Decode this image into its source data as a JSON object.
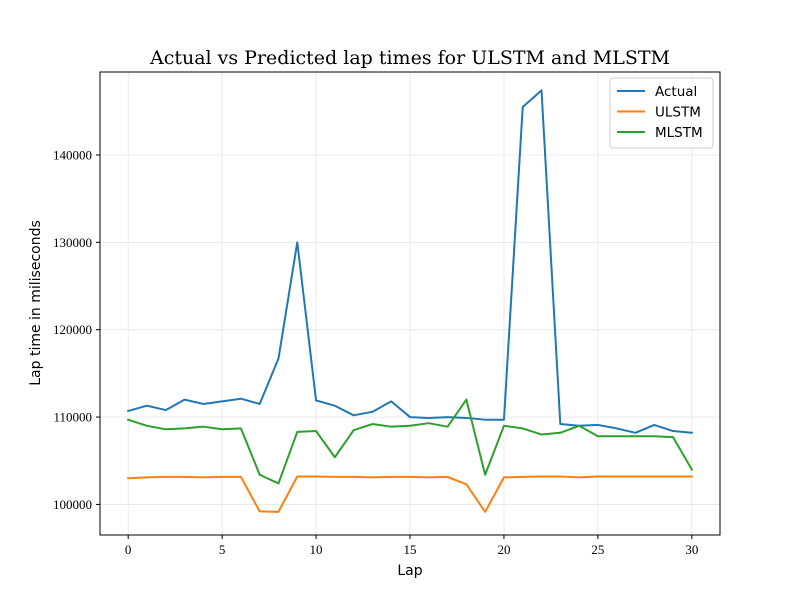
{
  "chart_data": {
    "type": "line",
    "title": "Actual vs Predicted lap times for ULSTM and MLSTM",
    "xlabel": "Lap",
    "ylabel": "Lap time in miliseconds",
    "xlim": [
      -1.5,
      31.5
    ],
    "ylim": [
      96500,
      149500
    ],
    "xticks": [
      0,
      5,
      10,
      15,
      20,
      25,
      30
    ],
    "yticks": [
      100000,
      110000,
      120000,
      130000,
      140000
    ],
    "grid": true,
    "legend_position": "top-right",
    "x": [
      0,
      1,
      2,
      3,
      4,
      5,
      6,
      7,
      8,
      9,
      10,
      11,
      12,
      13,
      14,
      15,
      16,
      17,
      18,
      19,
      20,
      21,
      22,
      23,
      24,
      25,
      26,
      27,
      28,
      29,
      30
    ],
    "series": [
      {
        "name": "Actual",
        "color": "#1f77b4",
        "values": [
          110700,
          111300,
          110800,
          112000,
          111500,
          111800,
          112100,
          111500,
          116700,
          130000,
          111900,
          111300,
          110200,
          110600,
          111800,
          110000,
          109900,
          110000,
          109900,
          109700,
          109700,
          145500,
          147400,
          109200,
          109000,
          109100,
          108700,
          108200,
          109100,
          108400,
          108200
        ]
      },
      {
        "name": "ULSTM",
        "color": "#ff7f0e",
        "values": [
          103000,
          103100,
          103150,
          103150,
          103100,
          103150,
          103150,
          99200,
          99150,
          103200,
          103200,
          103150,
          103150,
          103100,
          103150,
          103150,
          103100,
          103150,
          102300,
          99150,
          103100,
          103150,
          103200,
          103200,
          103100,
          103200,
          103200,
          103200,
          103200,
          103200,
          103200
        ]
      },
      {
        "name": "MLSTM",
        "color": "#2ca02c",
        "values": [
          109700,
          109000,
          108600,
          108700,
          108900,
          108600,
          108700,
          103400,
          102400,
          108300,
          108400,
          105400,
          108500,
          109200,
          108900,
          109000,
          109300,
          108900,
          112000,
          103400,
          109000,
          108700,
          108000,
          108200,
          109000,
          107800,
          107800,
          107800,
          107800,
          107700,
          104000
        ]
      }
    ]
  }
}
